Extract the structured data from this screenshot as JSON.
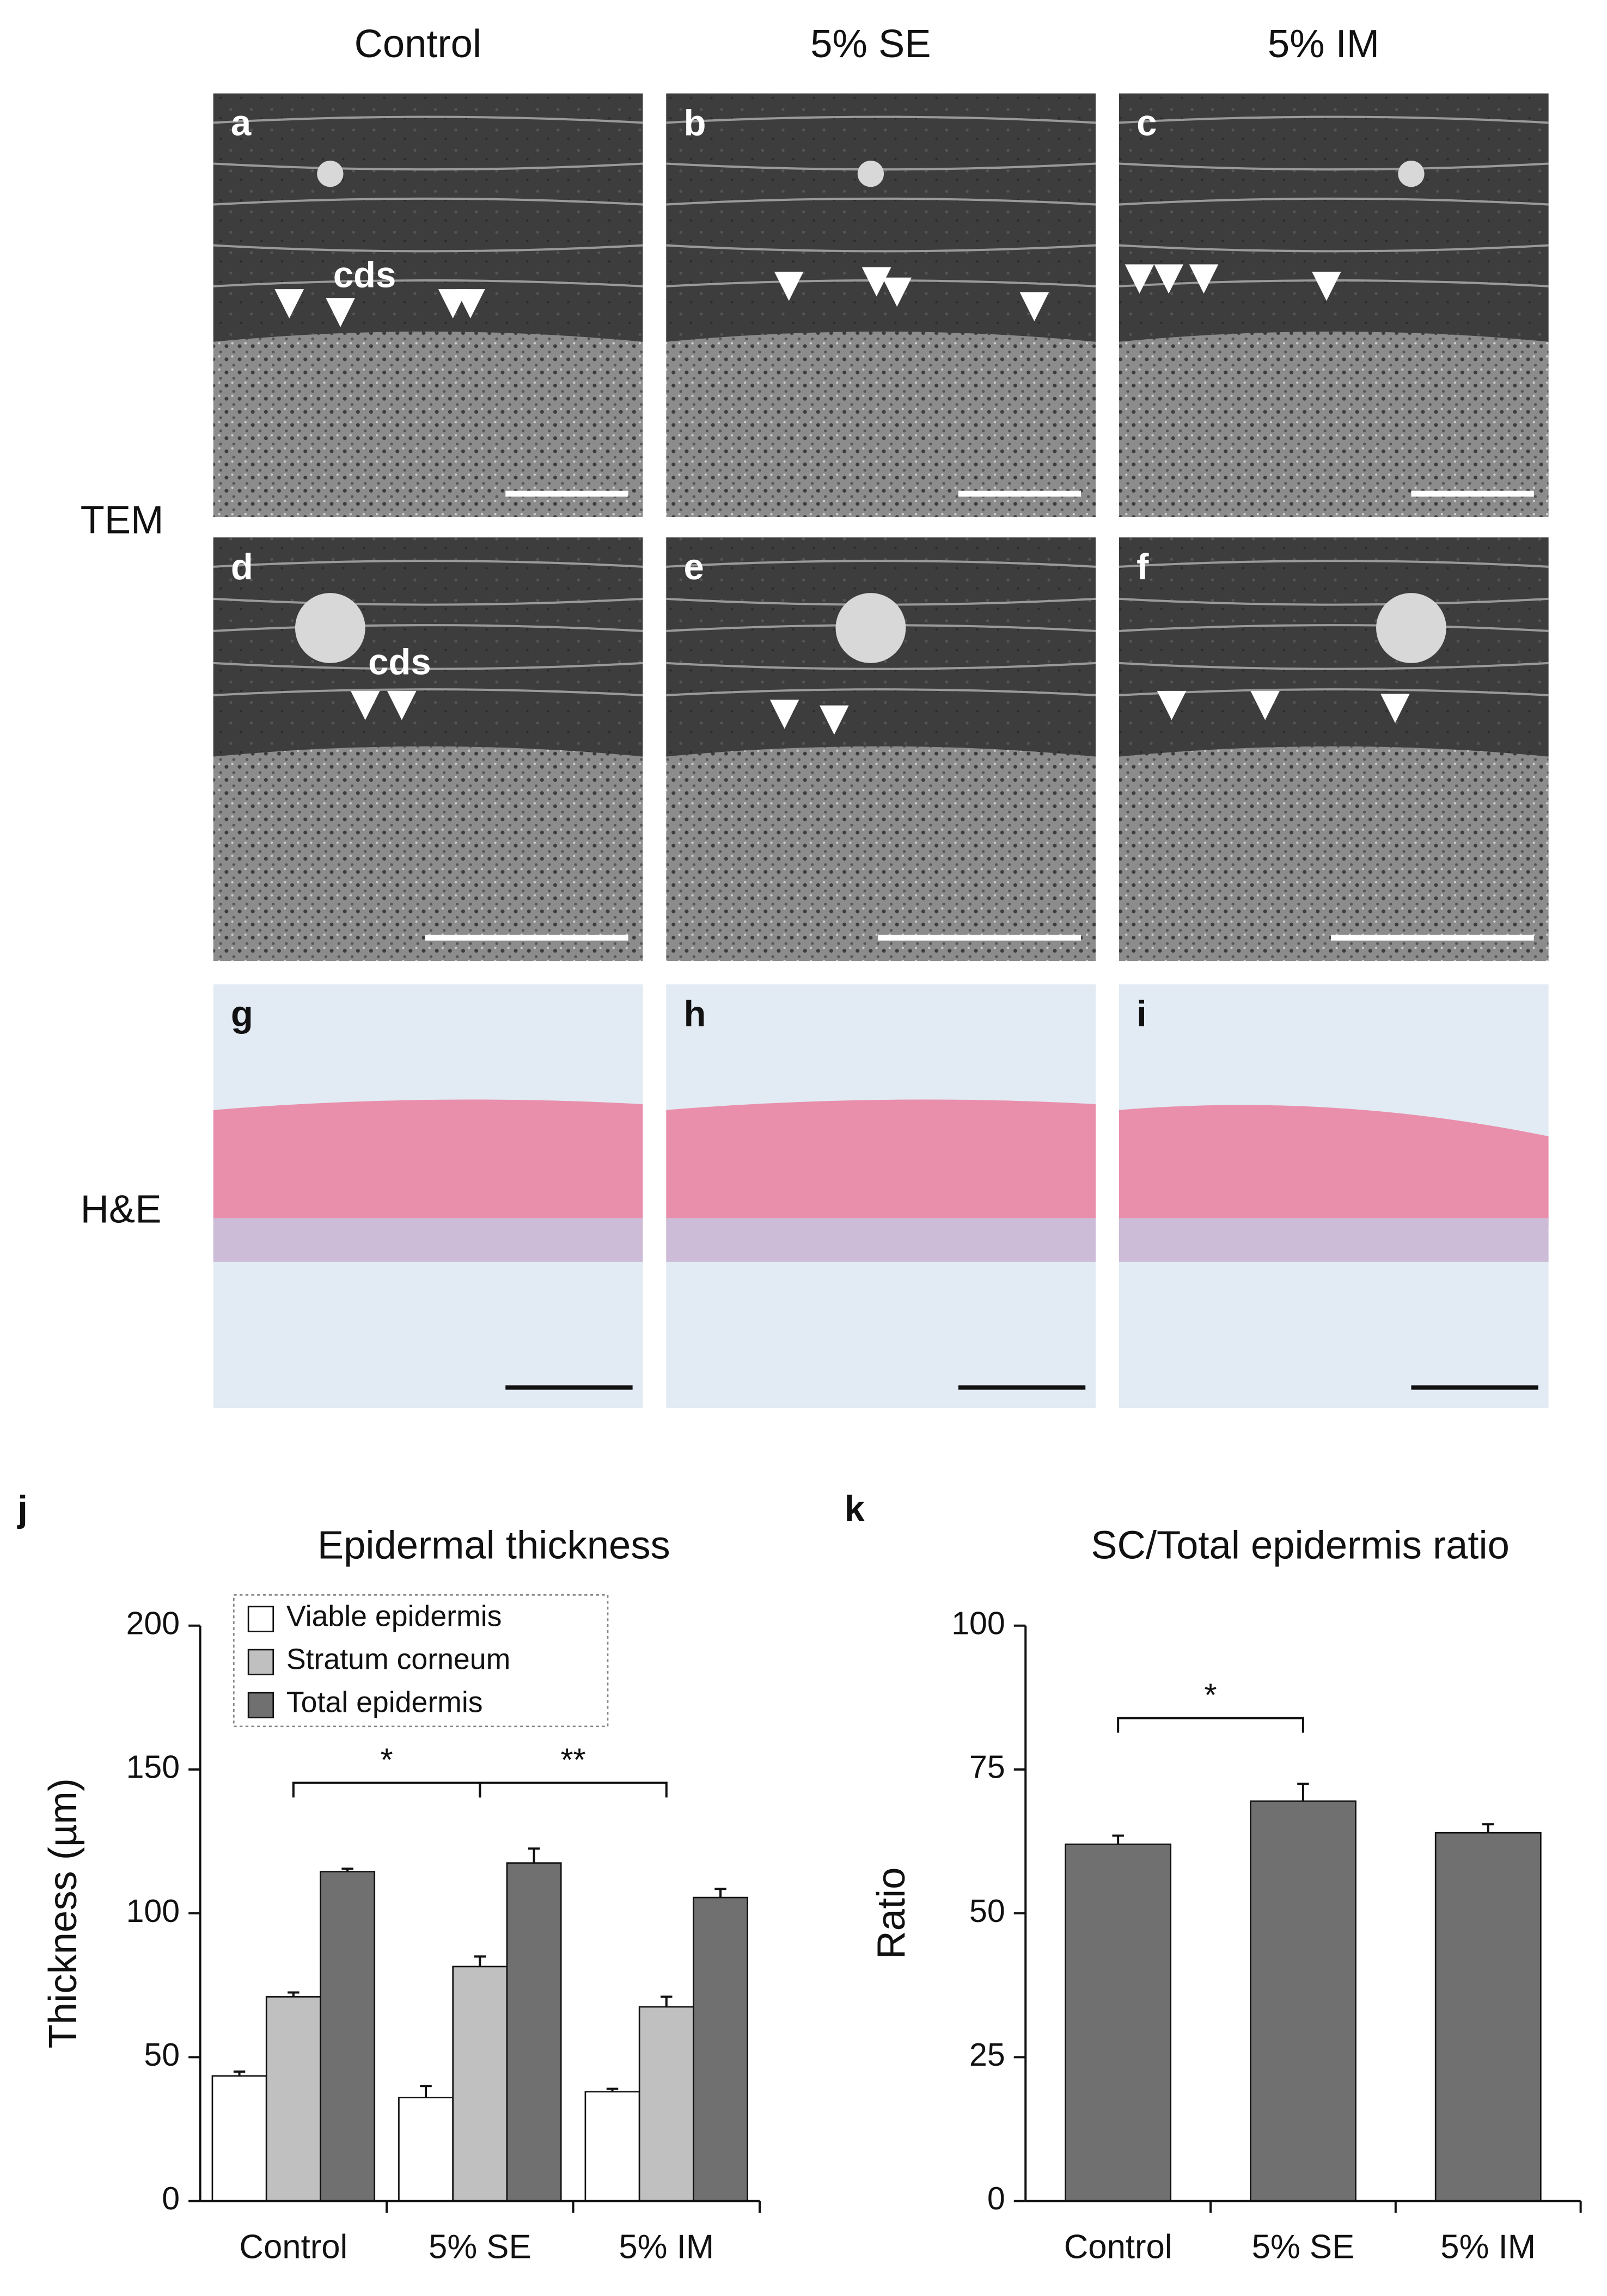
{
  "figure": {
    "column_headers": [
      "Control",
      "5% SE",
      "5% IM"
    ],
    "row_labels": [
      "TEM",
      "H&E"
    ],
    "panel_labels": [
      "a",
      "b",
      "c",
      "d",
      "e",
      "f",
      "g",
      "h",
      "i",
      "j",
      "k"
    ],
    "annotations": [
      "cds",
      "cds"
    ]
  },
  "chart_data": [
    {
      "type": "bar",
      "title": "Epidermal thickness",
      "ylabel": "Thickness (µm)",
      "categories": [
        "Control",
        "5% SE",
        "5% IM"
      ],
      "series": [
        {
          "name": "Viable epidermis",
          "color": "#ffffff",
          "values": [
            43.5,
            36,
            38
          ],
          "errors": [
            1.5,
            4,
            1
          ]
        },
        {
          "name": "Stratum corneum",
          "color": "#c0c0c0",
          "values": [
            71,
            81.5,
            67.5
          ],
          "errors": [
            1.5,
            3.5,
            3.5
          ]
        },
        {
          "name": "Total epidermis",
          "color": "#707070",
          "values": [
            114.5,
            117.5,
            105.5
          ],
          "errors": [
            1,
            5,
            3
          ]
        }
      ],
      "ylim": [
        0,
        200
      ],
      "yticks": [
        0,
        50,
        100,
        150,
        200
      ],
      "legend": "upper left",
      "significance": [
        {
          "pair": [
            0,
            1
          ],
          "label": "*"
        },
        {
          "pair": [
            1,
            2
          ],
          "label": "**"
        }
      ]
    },
    {
      "type": "bar",
      "title": "SC/Total epidermis ratio",
      "ylabel": "Ratio",
      "categories": [
        "Control",
        "5% SE",
        "5% IM"
      ],
      "series": [
        {
          "color": "#707070",
          "values": [
            62,
            69.5,
            64
          ],
          "errors": [
            1.5,
            3,
            1.5
          ]
        }
      ],
      "ylim": [
        0,
        100
      ],
      "yticks": [
        0,
        25,
        50,
        75,
        100
      ],
      "significance": [
        {
          "pair": [
            0,
            1
          ],
          "label": "*"
        }
      ]
    }
  ]
}
